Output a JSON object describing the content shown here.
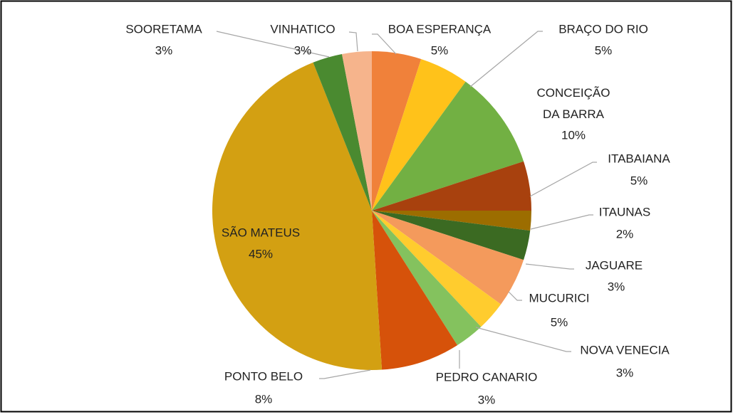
{
  "chart_data": {
    "type": "pie",
    "categories": [
      "BOA ESPERANÇA",
      "BRAÇO DO RIO",
      "CONCEIÇÃO DA BARRA",
      "ITABAIANA",
      "ITAUNAS",
      "JAGUARE",
      "MUCURICI",
      "NOVA VENECIA",
      "PEDRO CANARIO",
      "PONTO BELO",
      "SÃO MATEUS",
      "SOORETAMA",
      "VINHATICO"
    ],
    "values": [
      5,
      5,
      10,
      5,
      2,
      3,
      5,
      3,
      3,
      8,
      45,
      3,
      3
    ],
    "value_labels": [
      "5%",
      "5%",
      "10%",
      "5%",
      "2%",
      "3%",
      "5%",
      "3%",
      "3%",
      "8%",
      "45%",
      "3%",
      "3%"
    ],
    "colors": [
      "#f0813a",
      "#ffc21a",
      "#72b043",
      "#a8410e",
      "#9c6d00",
      "#3b6a22",
      "#f49a5c",
      "#ffcc2e",
      "#84c25e",
      "#d6520a",
      "#d3a012",
      "#4a8a30",
      "#f6b48c"
    ]
  }
}
